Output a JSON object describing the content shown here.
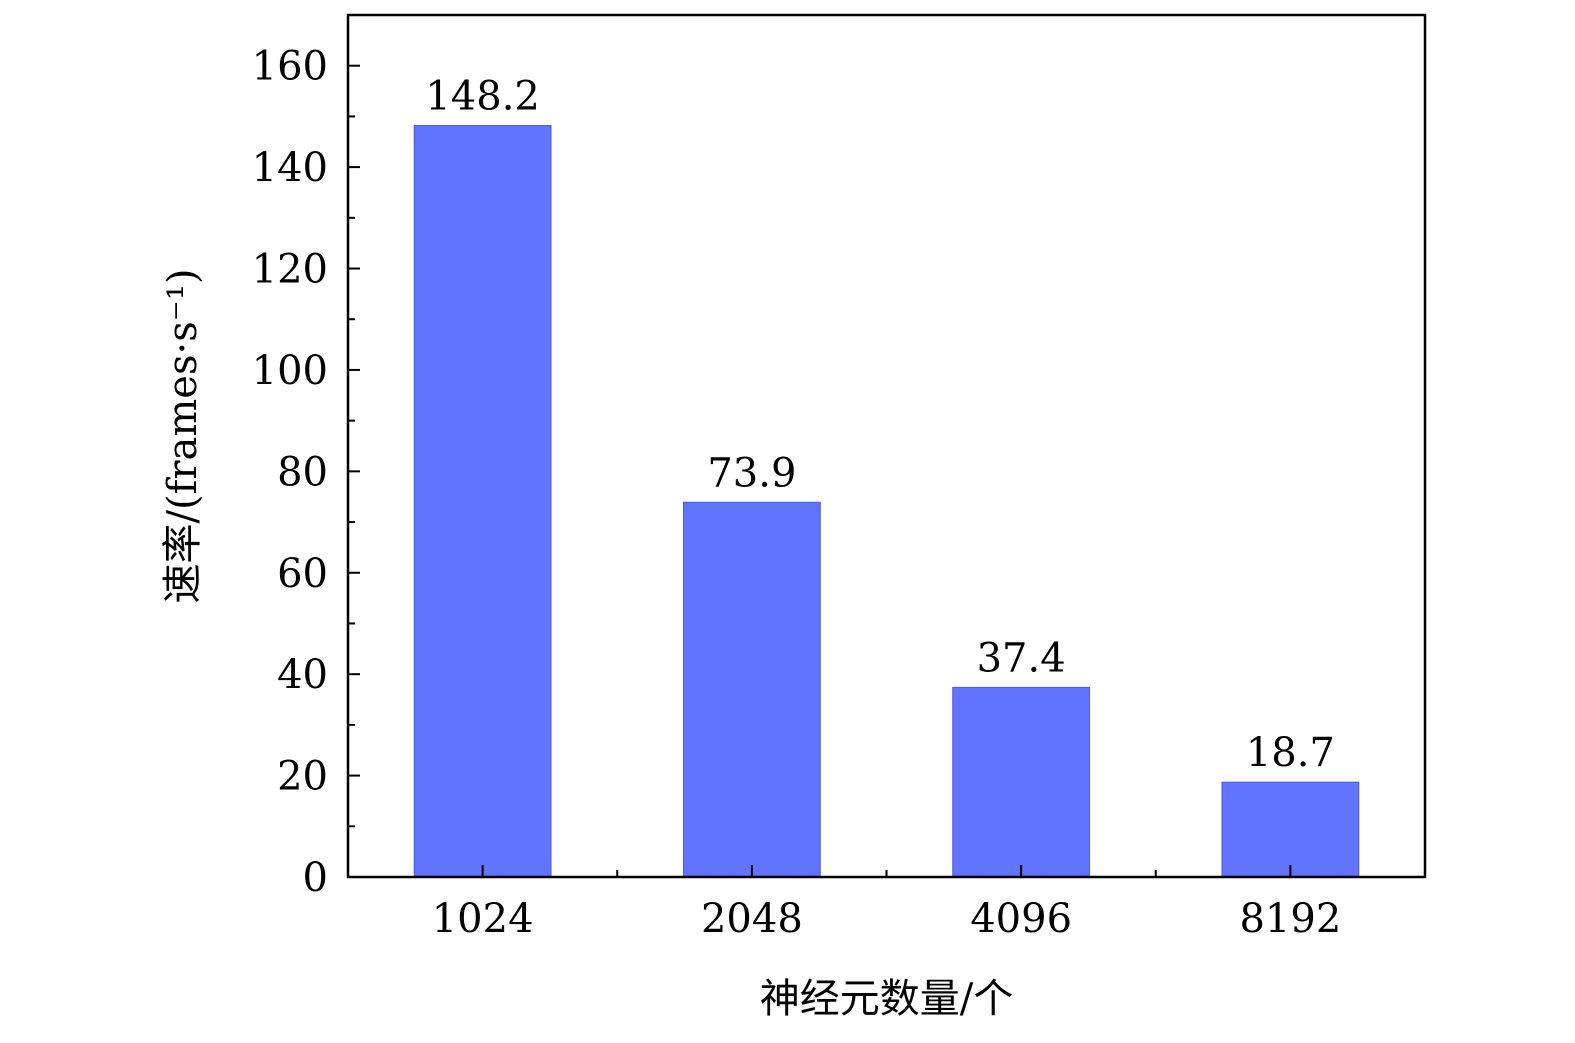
{
  "chart_data": {
    "type": "bar",
    "categories": [
      "1024",
      "2048",
      "4096",
      "8192"
    ],
    "values": [
      148.2,
      73.9,
      37.4,
      18.7
    ],
    "data_labels": [
      "148.2",
      "73.9",
      "37.4",
      "18.7"
    ],
    "xlabel": "神经元数量/个",
    "ylabel": "速率/(frames·s⁻¹)",
    "ylim": [
      0,
      170
    ],
    "yticks": [
      0,
      20,
      40,
      60,
      80,
      100,
      120,
      140,
      160
    ],
    "ytick_labels": [
      "0",
      "20",
      "40",
      "60",
      "80",
      "100",
      "120",
      "140",
      "160"
    ],
    "grid": false,
    "bar_color": "#6173ff",
    "axis_color": "#000000"
  }
}
